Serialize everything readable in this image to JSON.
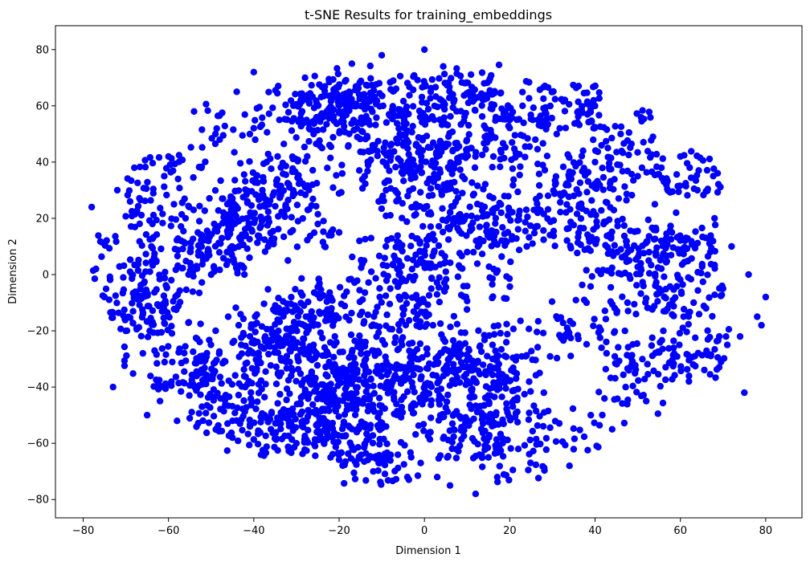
{
  "chart_data": {
    "type": "scatter",
    "title": "t-SNE Results for training_embeddings",
    "xlabel": "Dimension 1",
    "ylabel": "Dimension 2",
    "xlim": [
      -86.5,
      88.5
    ],
    "ylim": [
      -86.5,
      88.5
    ],
    "xticks": [
      -80,
      -60,
      -40,
      -20,
      0,
      20,
      40,
      60,
      80
    ],
    "yticks": [
      -80,
      -60,
      -40,
      -20,
      0,
      20,
      40,
      60,
      80
    ],
    "grid": false,
    "marker_color": "#0000ff",
    "series": [
      {
        "x": [
          -78,
          -75,
          -72,
          -70,
          -68,
          -66,
          -64,
          -62,
          -60,
          -58,
          -56,
          -54,
          -52,
          -50,
          -48,
          -46,
          -44,
          -42,
          -40,
          -38,
          -36,
          -34,
          -32,
          -30,
          -28,
          -26,
          -24,
          -22,
          -20,
          -18,
          -16,
          -14,
          -12,
          -10,
          -8,
          -6,
          -4,
          -2,
          0,
          2,
          4,
          6,
          8,
          10,
          12,
          14,
          16,
          18,
          20,
          22,
          24,
          26,
          28,
          30,
          32,
          34,
          36,
          38,
          40,
          42,
          44,
          46,
          48,
          50,
          52,
          54,
          56,
          58,
          60,
          62,
          64,
          66,
          68,
          70,
          72,
          74,
          76,
          78,
          80,
          -77,
          -73,
          -69,
          -65,
          -61,
          -57,
          -53,
          -49,
          -45,
          -41,
          -37,
          -33,
          -29,
          -25,
          -21,
          -17,
          -13,
          -9,
          -5,
          -1,
          3,
          7,
          11,
          15,
          19,
          23,
          27,
          31,
          35,
          39,
          43,
          47,
          51,
          55,
          59,
          63,
          67,
          71,
          75,
          79
        ],
        "y": [
          24,
          -8,
          30,
          -20,
          38,
          -28,
          10,
          -45,
          42,
          -52,
          20,
          58,
          -35,
          0,
          48,
          -15,
          65,
          -40,
          72,
          30,
          -55,
          55,
          5,
          -60,
          70,
          -25,
          45,
          -65,
          15,
          60,
          -48,
          35,
          -70,
          78,
          -5,
          52,
          -72,
          25,
          80,
          -18,
          62,
          -75,
          40,
          8,
          -78,
          68,
          -30,
          22,
          55,
          -62,
          10,
          48,
          -42,
          65,
          28,
          -68,
          58,
          -10,
          40,
          18,
          -55,
          50,
          5,
          35,
          -45,
          25,
          -20,
          15,
          42,
          -38,
          30,
          -12,
          20,
          -5,
          10,
          -22,
          0,
          -15,
          -8,
          2,
          -40,
          26,
          -50,
          35,
          12,
          -30,
          50,
          -58,
          6,
          40,
          -48,
          62,
          18,
          -22,
          75,
          -58,
          30,
          -12,
          56,
          -72,
          20,
          45,
          -65,
          12,
          60,
          -35,
          50,
          28,
          -50,
          45,
          -20,
          38,
          -5,
          22,
          -32,
          8,
          -25,
          -42,
          -18
        ]
      }
    ]
  }
}
